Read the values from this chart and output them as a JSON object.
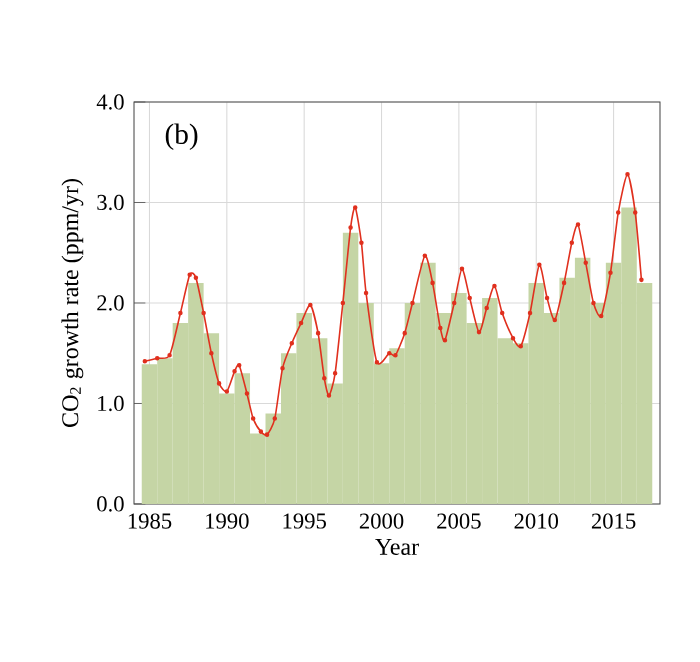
{
  "chart_data": {
    "type": "bar",
    "xlabel": "Year",
    "ylabel": "CO$_{2}$ growth rate (ppm/yr)",
    "annotations": [
      "(b)"
    ],
    "xlim": [
      1984,
      2018
    ],
    "xticks": [
      1985,
      1990,
      1995,
      2000,
      2005,
      2010,
      2015
    ],
    "ylim": [
      0,
      4
    ],
    "yticks": [
      {
        "value": 0,
        "label": "0.0"
      },
      {
        "value": 1,
        "label": "1.0"
      },
      {
        "value": 2,
        "label": "2.0"
      },
      {
        "value": 3,
        "label": "3.0"
      },
      {
        "value": 4,
        "label": "4.0"
      }
    ],
    "grid": true,
    "series": [
      {
        "color": "#c5d5a5",
        "x": [
          1985,
          1986,
          1987,
          1988,
          1989,
          1990,
          1991,
          1992,
          1993,
          1994,
          1995,
          1996,
          1997,
          1998,
          1999,
          2000,
          2001,
          2002,
          2003,
          2004,
          2005,
          2006,
          2007,
          2008,
          2009,
          2010,
          2011,
          2012,
          2013,
          2014,
          2015,
          2016,
          2017
        ],
        "values": [
          1.39,
          1.45,
          1.8,
          2.2,
          1.7,
          1.1,
          1.3,
          0.7,
          0.9,
          1.5,
          1.9,
          1.65,
          1.2,
          2.7,
          2.0,
          1.4,
          1.55,
          2.0,
          2.4,
          1.9,
          2.1,
          1.8,
          2.05,
          1.65,
          1.6,
          2.2,
          1.9,
          2.25,
          2.45,
          2.0,
          2.4,
          2.95,
          2.2
        ]
      },
      {
        "type": "line",
        "color": "#e0301e",
        "marker": "circle",
        "x": [
          1984.7,
          1985.5,
          1986.3,
          1987.0,
          1987.6,
          1988.0,
          1988.5,
          1989.0,
          1989.5,
          1990.0,
          1990.5,
          1990.8,
          1991.3,
          1991.7,
          1992.2,
          1992.6,
          1993.1,
          1993.6,
          1994.2,
          1994.8,
          1995.4,
          1995.9,
          1996.3,
          1996.6,
          1997.0,
          1997.5,
          1998.0,
          1998.3,
          1998.7,
          1999.0,
          1999.7,
          2000.5,
          2000.9,
          2001.5,
          2002.0,
          2002.8,
          2003.3,
          2003.8,
          2004.1,
          2004.7,
          2005.2,
          2005.7,
          2006.3,
          2006.8,
          2007.3,
          2007.8,
          2008.5,
          2009.0,
          2009.6,
          2010.2,
          2010.7,
          2011.2,
          2011.8,
          2012.3,
          2012.7,
          2013.2,
          2013.7,
          2014.2,
          2014.8,
          2015.3,
          2015.9,
          2016.4,
          2016.8
        ],
        "values": [
          1.42,
          1.45,
          1.48,
          1.9,
          2.28,
          2.25,
          1.9,
          1.5,
          1.2,
          1.12,
          1.32,
          1.38,
          1.1,
          0.85,
          0.72,
          0.69,
          0.85,
          1.35,
          1.6,
          1.8,
          1.98,
          1.7,
          1.25,
          1.08,
          1.3,
          2.0,
          2.75,
          2.95,
          2.6,
          2.1,
          1.41,
          1.5,
          1.48,
          1.7,
          2.0,
          2.47,
          2.2,
          1.75,
          1.63,
          2.0,
          2.34,
          2.05,
          1.71,
          1.95,
          2.17,
          1.9,
          1.65,
          1.57,
          1.9,
          2.38,
          2.05,
          1.83,
          2.2,
          2.6,
          2.78,
          2.4,
          2.0,
          1.87,
          2.3,
          2.9,
          3.28,
          2.9,
          2.23
        ]
      }
    ]
  }
}
